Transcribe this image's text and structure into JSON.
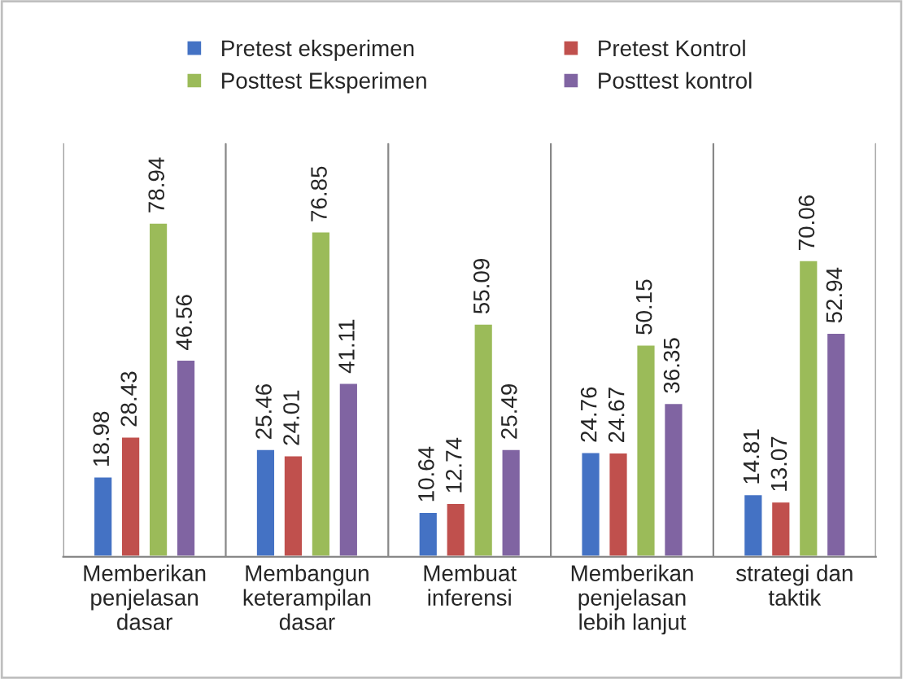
{
  "chart_data": {
    "type": "bar",
    "categories": [
      "Memberikan\npenjelasan\ndasar",
      "Membangun\nketerampilan\ndasar",
      "Membuat\ninferensi",
      "Memberikan\npenjelasan\nlebih lanjut",
      "strategi dan\ntaktik"
    ],
    "series": [
      {
        "name": "Pretest eksperimen",
        "color": "#4472c4",
        "values": [
          18.98,
          25.46,
          10.64,
          24.76,
          14.81
        ]
      },
      {
        "name": "Pretest Kontrol",
        "color": "#c0504d",
        "values": [
          28.43,
          24.01,
          12.74,
          24.67,
          13.07
        ]
      },
      {
        "name": "Posttest Eksperimen",
        "color": "#9bbb59",
        "values": [
          78.94,
          76.85,
          55.09,
          50.15,
          70.06
        ]
      },
      {
        "name": "Posttest kontrol",
        "color": "#8064a2",
        "values": [
          46.56,
          41.11,
          25.49,
          36.35,
          52.94
        ]
      }
    ],
    "data_labels": true,
    "legend": "top",
    "grid": "x",
    "tick_labels": "x"
  }
}
